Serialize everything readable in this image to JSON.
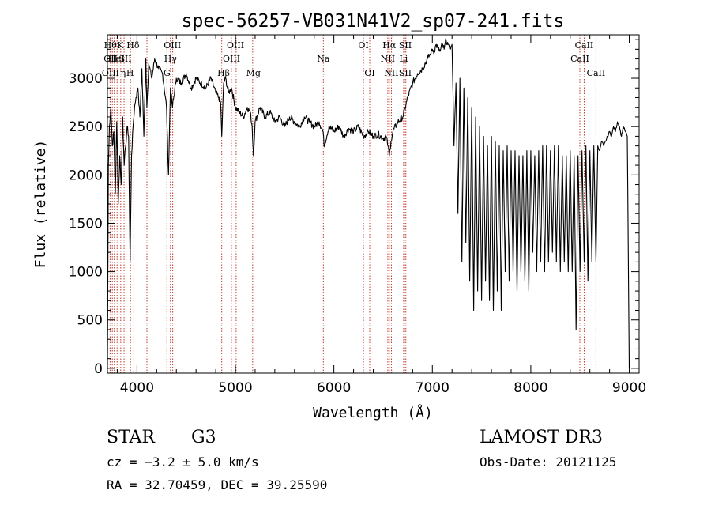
{
  "chart_data": {
    "type": "line",
    "title": "spec-56257-VB031N41V2_sp07-241.fits",
    "xlabel": "Wavelength (Å)",
    "ylabel": "Flux (relative)",
    "xlim": [
      3700,
      9100
    ],
    "ylim": [
      -50,
      3450
    ],
    "xticks": [
      "4000",
      "5000",
      "6000",
      "7000",
      "8000",
      "9000"
    ],
    "yticks": [
      "0",
      "500",
      "1000",
      "1500",
      "2000",
      "2500",
      "3000"
    ],
    "xtick_values": [
      4000,
      5000,
      6000,
      7000,
      8000,
      9000
    ],
    "ytick_values": [
      0,
      500,
      1000,
      1500,
      2000,
      2500,
      3000
    ],
    "grid": false,
    "series": [
      {
        "x": [
          3700,
          3710,
          3720,
          3735,
          3750,
          3765,
          3780,
          3795,
          3810,
          3825,
          3840,
          3855,
          3870,
          3885,
          3900,
          3915,
          3930,
          3945,
          3960,
          3975,
          3990,
          4010,
          4030,
          4050,
          4070,
          4090,
          4100,
          4120,
          4150,
          4180,
          4220,
          4260,
          4300,
          4320,
          4340,
          4360,
          4400,
          4450,
          4500,
          4550,
          4600,
          4650,
          4700,
          4750,
          4800,
          4830,
          4850,
          4861,
          4880,
          4900,
          4930,
          4960,
          5000,
          5040,
          5080,
          5120,
          5150,
          5170,
          5183,
          5200,
          5250,
          5300,
          5350,
          5400,
          5450,
          5500,
          5550,
          5600,
          5650,
          5700,
          5750,
          5800,
          5850,
          5890,
          5900,
          5950,
          6000,
          6050,
          6100,
          6150,
          6200,
          6250,
          6300,
          6350,
          6400,
          6450,
          6500,
          6530,
          6550,
          6563,
          6580,
          6600,
          6650,
          6700,
          6750,
          6800,
          6850,
          6900,
          6950,
          6980,
          7000,
          7020,
          7040,
          7060,
          7080,
          7100,
          7120,
          7140,
          7160,
          7180,
          7200,
          7220,
          7240,
          7260,
          7280,
          7300,
          7320,
          7340,
          7360,
          7380,
          7400,
          7420,
          7440,
          7460,
          7480,
          7500,
          7520,
          7540,
          7560,
          7580,
          7600,
          7620,
          7640,
          7660,
          7680,
          7700,
          7720,
          7740,
          7760,
          7780,
          7800,
          7820,
          7840,
          7860,
          7880,
          7900,
          7920,
          7940,
          7960,
          7980,
          8000,
          8020,
          8040,
          8060,
          8080,
          8100,
          8120,
          8140,
          8160,
          8180,
          8200,
          8220,
          8240,
          8260,
          8280,
          8300,
          8320,
          8340,
          8360,
          8380,
          8400,
          8420,
          8440,
          8460,
          8480,
          8500,
          8520,
          8542,
          8560,
          8580,
          8600,
          8620,
          8640,
          8662,
          8680,
          8700,
          8720,
          8740,
          8760,
          8780,
          8800,
          8820,
          8840,
          8860,
          8880,
          8900,
          8920,
          8940,
          8960,
          8980,
          9000
        ],
        "y": [
          0,
          2100,
          2500,
          2700,
          2300,
          2450,
          1800,
          2550,
          1700,
          2200,
          1900,
          2600,
          2100,
          2300,
          2500,
          2400,
          1100,
          2200,
          2500,
          2700,
          2800,
          2900,
          2600,
          3100,
          2400,
          3200,
          2700,
          3150,
          3000,
          3200,
          3100,
          3050,
          2700,
          2000,
          2900,
          2700,
          3000,
          2950,
          3050,
          2900,
          3000,
          2950,
          2900,
          3000,
          2850,
          2800,
          2750,
          2400,
          2950,
          3000,
          2850,
          2900,
          2700,
          2650,
          2600,
          2700,
          2650,
          2500,
          2200,
          2550,
          2700,
          2600,
          2650,
          2550,
          2600,
          2500,
          2600,
          2550,
          2500,
          2600,
          2550,
          2500,
          2550,
          2450,
          2300,
          2500,
          2450,
          2500,
          2400,
          2480,
          2450,
          2500,
          2400,
          2450,
          2400,
          2420,
          2380,
          2400,
          2300,
          2200,
          2350,
          2450,
          2550,
          2600,
          2800,
          2950,
          3050,
          3100,
          3200,
          3250,
          3300,
          3280,
          3350,
          3300,
          3280,
          3350,
          3300,
          3400,
          3350,
          3300,
          3350,
          2300,
          2950,
          1600,
          3000,
          1100,
          2900,
          1300,
          2800,
          900,
          2700,
          600,
          2600,
          800,
          2500,
          700,
          2400,
          900,
          2300,
          700,
          2400,
          600,
          2350,
          800,
          2300,
          600,
          2250,
          1000,
          2300,
          900,
          2250,
          1000,
          2250,
          800,
          2200,
          1000,
          2200,
          900,
          2250,
          800,
          2250,
          1200,
          2200,
          1000,
          2250,
          1100,
          2300,
          1000,
          2300,
          1100,
          2250,
          1200,
          2300,
          1100,
          2300,
          1000,
          2200,
          1100,
          2200,
          1000,
          2250,
          1000,
          2200,
          400,
          2200,
          1000,
          2250,
          1100,
          2300,
          900,
          2250,
          1100,
          2300,
          1100,
          2300,
          2250,
          2350,
          2300,
          2350,
          2400,
          2450,
          2400,
          2500,
          2450,
          2550,
          2500,
          2400,
          2500,
          2450,
          2400,
          0
        ]
      }
    ],
    "annotations": [
      {
        "x": 3730,
        "row": 1,
        "text": "Hθ"
      },
      {
        "x": 3733,
        "row": 2,
        "text": "OII"
      },
      {
        "x": 3731,
        "row": 3,
        "text": "OIII"
      },
      {
        "x": 3830,
        "row": 1,
        "text": "K"
      },
      {
        "x": 3790,
        "row": 2,
        "text": "HeI"
      },
      {
        "x": 3860,
        "row": 3,
        "text": "η"
      },
      {
        "x": 3960,
        "row": 1,
        "text": "Hδ"
      },
      {
        "x": 3880,
        "row": 2,
        "text": "SII"
      },
      {
        "x": 3930,
        "row": 3,
        "text": "H"
      },
      {
        "x": 4360,
        "row": 1,
        "text": "OIII"
      },
      {
        "x": 4341,
        "row": 2,
        "text": "Hγ"
      },
      {
        "x": 4305,
        "row": 3,
        "text": "G"
      },
      {
        "x": 5000,
        "row": 1,
        "text": "OIII"
      },
      {
        "x": 4960,
        "row": 2,
        "text": "OIII"
      },
      {
        "x": 4880,
        "row": 3,
        "text": "Hβ"
      },
      {
        "x": 5183,
        "row": 3,
        "text": "Mg"
      },
      {
        "x": 5893,
        "row": 2,
        "text": "Na"
      },
      {
        "x": 6300,
        "row": 1,
        "text": "OI"
      },
      {
        "x": 6364,
        "row": 3,
        "text": "OI"
      },
      {
        "x": 6563,
        "row": 1,
        "text": "Hα"
      },
      {
        "x": 6548,
        "row": 2,
        "text": "NII"
      },
      {
        "x": 6584,
        "row": 3,
        "text": "NII"
      },
      {
        "x": 6725,
        "row": 1,
        "text": "SII"
      },
      {
        "x": 6708,
        "row": 2,
        "text": "Li"
      },
      {
        "x": 6725,
        "row": 3,
        "text": "SII"
      },
      {
        "x": 8542,
        "row": 1,
        "text": "CaII"
      },
      {
        "x": 8498,
        "row": 2,
        "text": "CaII"
      },
      {
        "x": 8662,
        "row": 3,
        "text": "CaII"
      }
    ],
    "line_markers": [
      3727,
      3750,
      3770,
      3798,
      3835,
      3869,
      3889,
      3934,
      3968,
      4101,
      4304,
      4340,
      4363,
      4861,
      4959,
      5007,
      5175,
      5893,
      6300,
      6364,
      6548,
      6563,
      6584,
      6708,
      6717,
      6731,
      8498,
      8542,
      8662
    ]
  },
  "info": {
    "object_class": "STAR",
    "subclass": "G3",
    "survey": "LAMOST DR3",
    "cz": "cz = −3.2 ± 5.0 km/s",
    "obs_date": "Obs-Date: 20121125",
    "coords": "RA =  32.70459, DEC =  39.25590"
  }
}
